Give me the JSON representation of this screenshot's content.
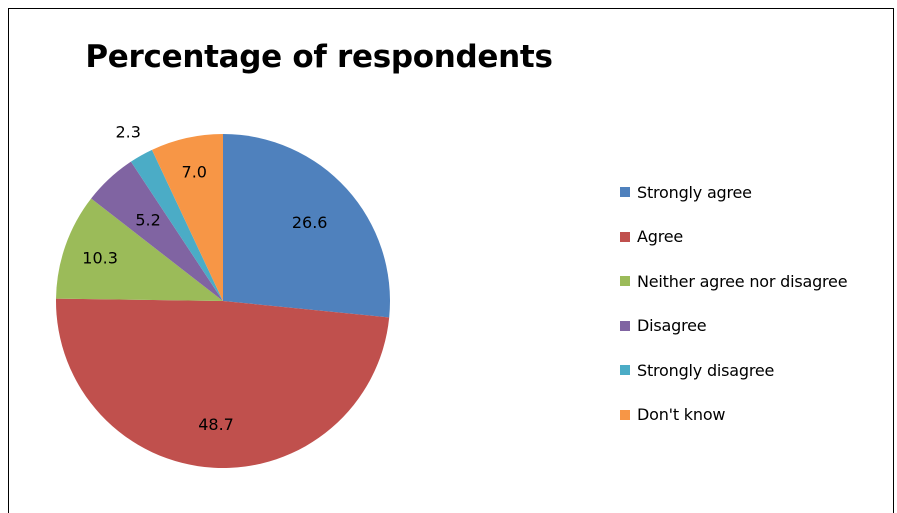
{
  "chart_data": {
    "type": "pie",
    "title": "Percentage of respondents",
    "categories": [
      "Strongly agree",
      "Agree",
      "Neither agree nor disagree",
      "Disagree",
      "Strongly disagree",
      "Don't know"
    ],
    "values": [
      26.6,
      48.7,
      10.3,
      5.2,
      2.3,
      7.0
    ],
    "value_labels": [
      "26.6",
      "48.7",
      "10.3",
      "5.2",
      "2.3",
      "7.0"
    ],
    "colors": [
      "#4f81bd",
      "#c0504d",
      "#9bbb59",
      "#8064a2",
      "#4bacc6",
      "#f79646"
    ],
    "start_angle": "12 o'clock",
    "direction": "clockwise",
    "legend_position": "right"
  }
}
